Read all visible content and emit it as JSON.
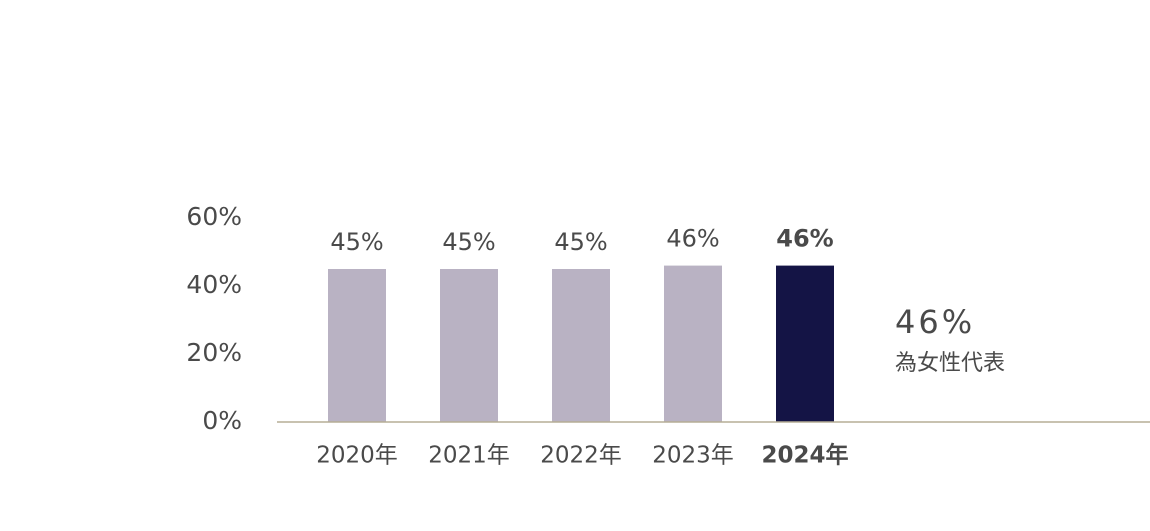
{
  "chart_data": {
    "type": "bar",
    "categories": [
      "2020年",
      "2021年",
      "2022年",
      "2023年",
      "2024年"
    ],
    "values": [
      45,
      45,
      45,
      46,
      46
    ],
    "value_labels": [
      "45%",
      "45%",
      "45%",
      "46%",
      "46%"
    ],
    "colors": [
      "#b9b2c3",
      "#b9b2c3",
      "#b9b2c3",
      "#b9b2c3",
      "#141445"
    ],
    "highlight": 4,
    "ylim": [
      0,
      60
    ],
    "yticks": [
      {
        "value": 0,
        "label": "0%"
      },
      {
        "value": 20,
        "label": "20%"
      },
      {
        "value": 40,
        "label": "40%"
      },
      {
        "value": 60,
        "label": "60%"
      }
    ],
    "grid": false,
    "annotation": {
      "headline": "46%",
      "text": "為女性代表"
    }
  }
}
